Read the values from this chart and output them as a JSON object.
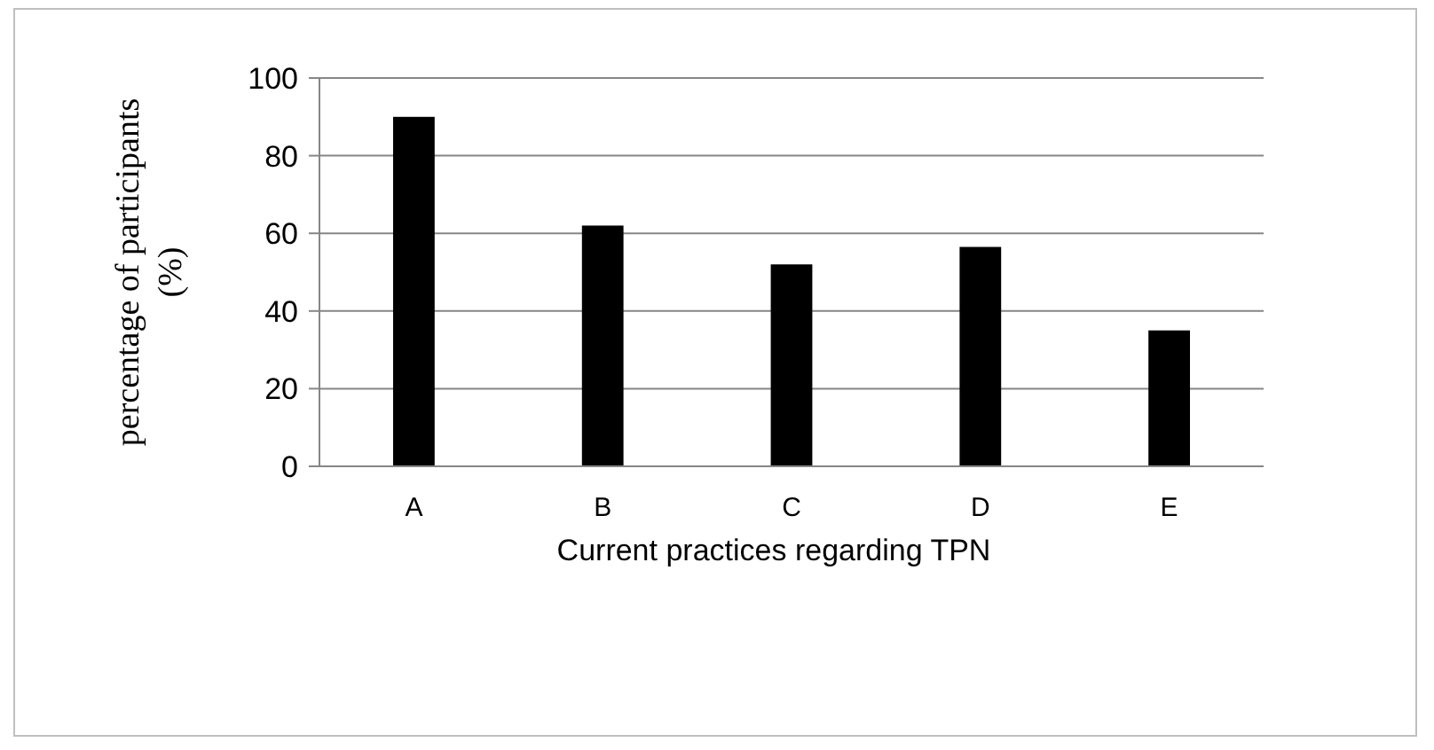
{
  "chart_data": {
    "type": "bar",
    "xlabel": "Current  practices regarding TPN",
    "ylabel": "percentage of participants\n(%)",
    "categories": [
      "A",
      "B",
      "C",
      "D",
      "E"
    ],
    "values": [
      90,
      62,
      52,
      56.5,
      35
    ],
    "color": "#000000",
    "ylim": [
      0,
      100
    ],
    "yticks": [
      0,
      20,
      40,
      60,
      80,
      100
    ],
    "grid": "y"
  }
}
